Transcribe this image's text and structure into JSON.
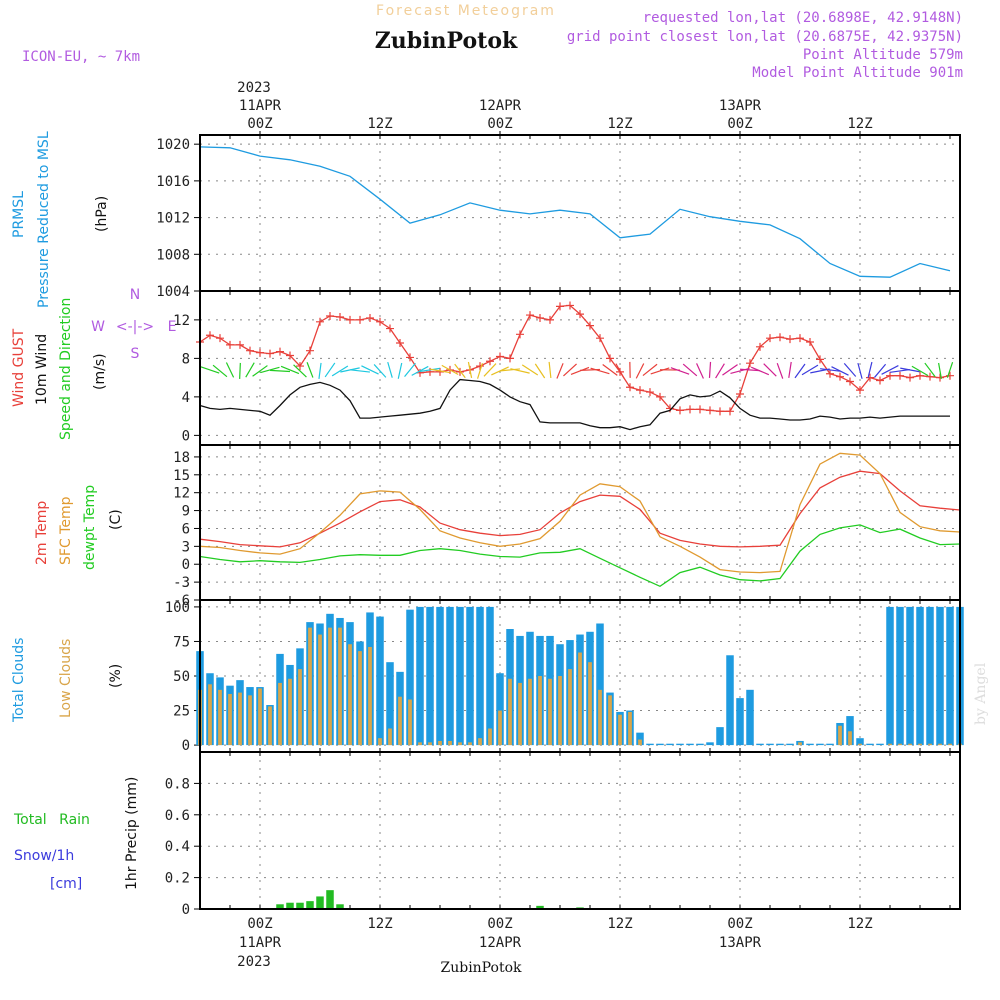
{
  "header": {
    "title": "Forecast Meteogram",
    "station": "ZubinPotok",
    "model": "ICON-EU, ~ 7km",
    "requested": "requested lon,lat (20.6898E, 42.9148N)",
    "closest": "grid point closest lon,lat (20.6875E, 42.9375N)",
    "point_alt": "Point Altitude 579m",
    "model_alt": "Model Point Altitude 901m",
    "footer": "ZubinPotok",
    "watermark": "by Angel"
  },
  "time_axis": {
    "top_year": "2023",
    "bottom_year": "2023",
    "ticks": [
      {
        "h": 0,
        "label": "00Z",
        "date": "11APR"
      },
      {
        "h": 12,
        "label": "12Z",
        "date": ""
      },
      {
        "h": 24,
        "label": "00Z",
        "date": "12APR"
      },
      {
        "h": 36,
        "label": "12Z",
        "date": ""
      },
      {
        "h": 48,
        "label": "00Z",
        "date": "13APR"
      },
      {
        "h": 60,
        "label": "12Z",
        "date": ""
      }
    ],
    "start_hour": -6,
    "end_hour": 70
  },
  "panel_labels": {
    "prmsl": [
      "PRMSL",
      "Pressure Reduced to MSL",
      "(hPa)"
    ],
    "wind": [
      "Wind GUST",
      "10m Wind",
      "Speed and Direction",
      "(m/s)"
    ],
    "compass": {
      "w": "W",
      "e": "E",
      "n": "N",
      "s": "S",
      "arrow": "<-|->"
    },
    "temp": [
      "2m Temp",
      "SFC Temp",
      "dewpt Temp",
      "(C)"
    ],
    "cloud": [
      "Total Clouds",
      "Low Clouds",
      "(%)"
    ],
    "precip": [
      "Total Rain",
      "Snow/1h",
      "[cm]",
      "1hr Precip (mm)"
    ]
  },
  "colors": {
    "pressure": "#1e9be0",
    "gust": "#e8403a",
    "wind": "#111111",
    "t2m": "#e8403a",
    "tsfc": "#e09a30",
    "dewpt": "#22cc22",
    "total_clouds": "#1e9be0",
    "low_clouds": "#d9a54a",
    "rain": "#22bb22",
    "snow": "#3b3bdd",
    "header_title": "#f2cf9a",
    "header_purple": "#b15be0"
  },
  "chart_data": [
    {
      "type": "line",
      "name": "prmsl",
      "ylabel": "(hPa)",
      "ylim": [
        1004,
        1021
      ],
      "yticks": [
        1004,
        1008,
        1012,
        1016,
        1020
      ],
      "x": [
        -6,
        -3,
        0,
        3,
        6,
        9,
        12,
        15,
        18,
        21,
        24,
        27,
        30,
        33,
        36,
        39,
        42,
        45,
        48,
        51,
        54,
        57,
        60,
        63,
        66,
        69
      ],
      "series": [
        {
          "values": [
            1019.7,
            1019.6,
            1018.7,
            1018.3,
            1017.6,
            1016.5,
            1014.0,
            1011.4,
            1012.3,
            1013.6,
            1012.8,
            1012.4,
            1012.8,
            1012.4,
            1009.8,
            1010.2,
            1012.9,
            1012.1,
            1011.6,
            1011.2,
            1009.7,
            1007.0,
            1005.6,
            1005.5,
            1007.0,
            1006.2
          ]
        }
      ],
      "grid": true
    },
    {
      "type": "line",
      "name": "wind",
      "ylabel": "(m/s)",
      "ylim": [
        -1,
        15
      ],
      "yticks": [
        0,
        4,
        8,
        12
      ],
      "x": [
        -6,
        -5,
        -4,
        -3,
        -2,
        -1,
        0,
        1,
        2,
        3,
        4,
        5,
        6,
        7,
        8,
        9,
        10,
        11,
        12,
        13,
        14,
        15,
        16,
        17,
        18,
        19,
        20,
        21,
        22,
        23,
        24,
        25,
        26,
        27,
        28,
        29,
        30,
        31,
        32,
        33,
        34,
        35,
        36,
        37,
        38,
        39,
        40,
        41,
        42,
        43,
        44,
        45,
        46,
        47,
        48,
        49,
        50,
        51,
        52,
        53,
        54,
        55,
        56,
        57,
        58,
        59,
        60,
        61,
        62,
        63,
        64,
        65,
        66,
        67,
        68,
        69
      ],
      "series": [
        {
          "values": [
            9.7,
            10.4,
            10.1,
            9.4,
            9.4,
            8.8,
            8.6,
            8.5,
            8.7,
            8.3,
            7.2,
            8.8,
            11.8,
            12.4,
            12.3,
            12.0,
            12.0,
            12.2,
            11.8,
            11.1,
            9.6,
            8.1,
            6.5,
            6.6,
            6.6,
            6.8,
            6.6,
            6.8,
            7.2,
            7.7,
            8.2,
            8.0,
            10.5,
            12.5,
            12.2,
            12.0,
            13.4,
            13.5,
            12.6,
            11.4,
            10.1,
            8.0,
            6.6,
            5.0,
            4.7,
            4.5,
            4.0,
            2.8,
            2.6,
            2.7,
            2.7,
            2.6,
            2.5,
            2.5,
            4.3,
            7.5,
            9.2,
            10.1,
            10.2,
            10.0,
            10.1,
            9.7,
            7.9,
            6.4,
            6.1,
            5.6,
            4.7,
            6.0,
            5.7,
            6.2,
            6.2,
            6.0,
            6.2,
            6.1,
            6.0,
            6.2
          ]
        },
        {
          "values": [
            3.1,
            2.8,
            2.7,
            2.8,
            2.7,
            2.6,
            2.5,
            2.1,
            3.1,
            4.2,
            5.0,
            5.3,
            5.5,
            5.2,
            4.7,
            3.6,
            1.8,
            1.8,
            1.9,
            2.0,
            2.1,
            2.2,
            2.3,
            2.5,
            2.8,
            4.7,
            5.8,
            5.7,
            5.6,
            5.3,
            4.7,
            4.0,
            3.5,
            3.2,
            1.4,
            1.3,
            1.3,
            1.3,
            1.3,
            1.0,
            0.8,
            0.8,
            0.9,
            0.6,
            0.9,
            1.1,
            2.3,
            2.6,
            3.8,
            4.2,
            4.0,
            4.1,
            4.6,
            3.9,
            2.8,
            2.1,
            1.8,
            1.8,
            1.7,
            1.6,
            1.6,
            1.7,
            2.0,
            1.9,
            1.7,
            1.8,
            1.8,
            1.9,
            1.8,
            1.9,
            2.0,
            2.0,
            2.0,
            2.0,
            2.0,
            2.0
          ]
        }
      ],
      "grid": true
    },
    {
      "type": "line",
      "name": "temperature",
      "ylabel": "(C)",
      "ylim": [
        -6,
        20
      ],
      "yticks": [
        -6,
        -3,
        0,
        3,
        6,
        9,
        12,
        15,
        18
      ],
      "x": [
        -6,
        -4,
        -2,
        0,
        2,
        4,
        6,
        8,
        10,
        12,
        14,
        16,
        18,
        20,
        22,
        24,
        26,
        28,
        30,
        32,
        34,
        36,
        38,
        40,
        42,
        44,
        46,
        48,
        50,
        52,
        54,
        56,
        58,
        60,
        62,
        64,
        66,
        68,
        70
      ],
      "series": [
        {
          "values": [
            4.2,
            3.8,
            3.3,
            3.1,
            2.9,
            3.6,
            5.2,
            6.9,
            8.8,
            10.5,
            10.8,
            9.6,
            6.9,
            5.8,
            5.2,
            4.8,
            5.0,
            5.8,
            8.6,
            10.5,
            11.6,
            11.4,
            9.2,
            5.2,
            4.0,
            3.4,
            3.0,
            2.9,
            3.0,
            3.2,
            8.5,
            12.8,
            14.6,
            15.6,
            15.2,
            12.3,
            9.8,
            9.4,
            9.1
          ]
        },
        {
          "values": [
            3.0,
            2.8,
            2.3,
            1.9,
            1.7,
            2.6,
            5.3,
            8.2,
            11.8,
            12.3,
            12.1,
            9.2,
            5.6,
            4.4,
            3.6,
            3.0,
            3.4,
            4.3,
            7.2,
            11.6,
            13.5,
            13.0,
            10.6,
            4.6,
            3.0,
            1.2,
            -0.9,
            -1.3,
            -1.4,
            -1.2,
            10.0,
            16.8,
            18.6,
            18.3,
            15.2,
            8.7,
            6.3,
            5.6,
            5.4
          ]
        },
        {
          "values": [
            1.3,
            0.8,
            0.4,
            0.6,
            0.4,
            0.3,
            0.8,
            1.4,
            1.6,
            1.5,
            1.5,
            2.3,
            2.6,
            2.3,
            1.7,
            1.3,
            1.2,
            1.9,
            2.0,
            2.6,
            1.0,
            -0.6,
            -2.2,
            -3.7,
            -1.4,
            -0.5,
            -1.8,
            -2.6,
            -2.8,
            -2.4,
            2.2,
            5.0,
            6.1,
            6.6,
            5.3,
            5.9,
            4.4,
            3.3,
            3.4
          ]
        }
      ],
      "grid": true
    },
    {
      "type": "bar",
      "name": "clouds",
      "ylabel": "(%)",
      "ylim": [
        -5,
        105
      ],
      "yticks": [
        0,
        25,
        50,
        75,
        100
      ],
      "x": [
        -6,
        -5,
        -4,
        -3,
        -2,
        -1,
        0,
        1,
        2,
        3,
        4,
        5,
        6,
        7,
        8,
        9,
        10,
        11,
        12,
        13,
        14,
        15,
        16,
        17,
        18,
        19,
        20,
        21,
        22,
        23,
        24,
        25,
        26,
        27,
        28,
        29,
        30,
        31,
        32,
        33,
        34,
        35,
        36,
        37,
        38,
        39,
        40,
        41,
        42,
        43,
        44,
        45,
        46,
        47,
        48,
        49,
        50,
        51,
        52,
        53,
        54,
        55,
        56,
        57,
        58,
        59,
        60,
        61,
        62,
        63,
        64,
        65,
        66,
        67,
        68,
        69,
        70
      ],
      "series": [
        {
          "name": "Total Clouds",
          "values": [
            68,
            52,
            49,
            43,
            47,
            42,
            42,
            29,
            66,
            58,
            70,
            89,
            88,
            95,
            92,
            89,
            75,
            96,
            93,
            60,
            53,
            98,
            100,
            100,
            100,
            100,
            100,
            100,
            100,
            100,
            52,
            84,
            79,
            82,
            79,
            79,
            73,
            76,
            80,
            82,
            88,
            38,
            24,
            25,
            9,
            1,
            1,
            1,
            1,
            1,
            1,
            2,
            13,
            65,
            34,
            40,
            1,
            1,
            1,
            1,
            3,
            1,
            1,
            1,
            16,
            21,
            5,
            1,
            1,
            100,
            100,
            100,
            100,
            100,
            100,
            100,
            100
          ]
        },
        {
          "name": "Low Clouds",
          "values": [
            40,
            44,
            40,
            37,
            38,
            36,
            41,
            28,
            45,
            48,
            55,
            85,
            80,
            85,
            85,
            73,
            68,
            71,
            5,
            12,
            35,
            33,
            2,
            2,
            3,
            3,
            2,
            2,
            5,
            12,
            25,
            48,
            45,
            48,
            50,
            48,
            50,
            55,
            67,
            60,
            40,
            36,
            22,
            24,
            4,
            0,
            0,
            0,
            0,
            0,
            0,
            0,
            0,
            0,
            0,
            0,
            0,
            0,
            0,
            0,
            2,
            0,
            0,
            0,
            14,
            10,
            1,
            0,
            0,
            1,
            1,
            1,
            1,
            1,
            1,
            1,
            1
          ]
        }
      ],
      "grid": true
    },
    {
      "type": "bar",
      "name": "precip",
      "ylabel": "1hr Precip (mm)",
      "ylim": [
        0,
        1.0
      ],
      "yticks": [
        0,
        0.2,
        0.4,
        0.6,
        0.8
      ],
      "x": [
        2,
        3,
        4,
        5,
        6,
        7,
        8,
        28,
        32
      ],
      "series": [
        {
          "name": "Total Rain",
          "values": [
            0.03,
            0.04,
            0.04,
            0.05,
            0.08,
            0.12,
            0.03,
            0.02,
            0.01
          ]
        },
        {
          "name": "Snow/1h",
          "values": [
            0,
            0,
            0,
            0,
            0,
            0,
            0,
            0,
            0
          ]
        }
      ],
      "grid": true
    }
  ]
}
